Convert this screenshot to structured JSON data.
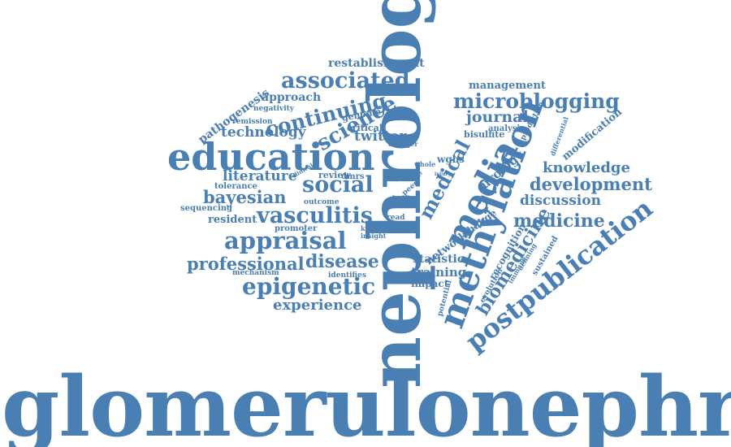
{
  "colors": {
    "word": "#4a7fb3",
    "background": "#ffffff"
  },
  "words": {
    "glomerulonephritis": "glomerulonephritis",
    "nephrology": "nephrology",
    "education": "education",
    "methylation": "methylation",
    "media": "media",
    "medical": "medical",
    "postpublication": "postpublication",
    "biomedicine": "biomedicine",
    "microblogging": "microblogging",
    "associated": "associated",
    "continuing": "continuing",
    "science": "science",
    "social": "social",
    "twitter": "twitter",
    "technology": "technology",
    "bayesian": "bayesian",
    "vasculitis": "vasculitis",
    "appraisal": "appraisal",
    "professional": "professional",
    "disease": "disease",
    "epigenetic": "epigenetic",
    "experience": "experience",
    "literature": "literature",
    "resident": "resident",
    "knowledge": "knowledge",
    "development": "development",
    "discussion": "discussion",
    "medicine": "medicine",
    "modification": "modification",
    "journal": "journal",
    "management": "management",
    "restablishment": "restablishment",
    "pathogenesis": "pathogenesis",
    "approach": "approach",
    "negativity": "negativity",
    "remission": "remission",
    "genome": "genome",
    "critical": "critical",
    "bisulfite": "bisulfite",
    "analysis": "analysis",
    "prediction": "prediction",
    "differential": "differential",
    "urology": "urology",
    "wgbs": "wgbs",
    "changer": "changer",
    "review": "review",
    "dmrs": "dmrs",
    "tolerance": "tolerance",
    "sequencing": "sequencing",
    "outcome": "outcome",
    "promoter": "promoter",
    "mechanism": "mechanism",
    "identifies": "identifies",
    "kidney": "kidney",
    "insight": "insight",
    "read": "read",
    "club": "club",
    "peer": "peer",
    "network": "network",
    "change": "change",
    "statistic": "statistic",
    "training": "training",
    "impact": "impact",
    "recognition": "recognition",
    "evolution": "evolution",
    "immune": "immune",
    "sustained": "sustained",
    "defining": "defining",
    "potential": "potential",
    "whole": "whole",
    "clinical": "clinical",
    "injury": "injury",
    "game": "game",
    "tool": "tool",
    "data": "data",
    "order": "order"
  }
}
